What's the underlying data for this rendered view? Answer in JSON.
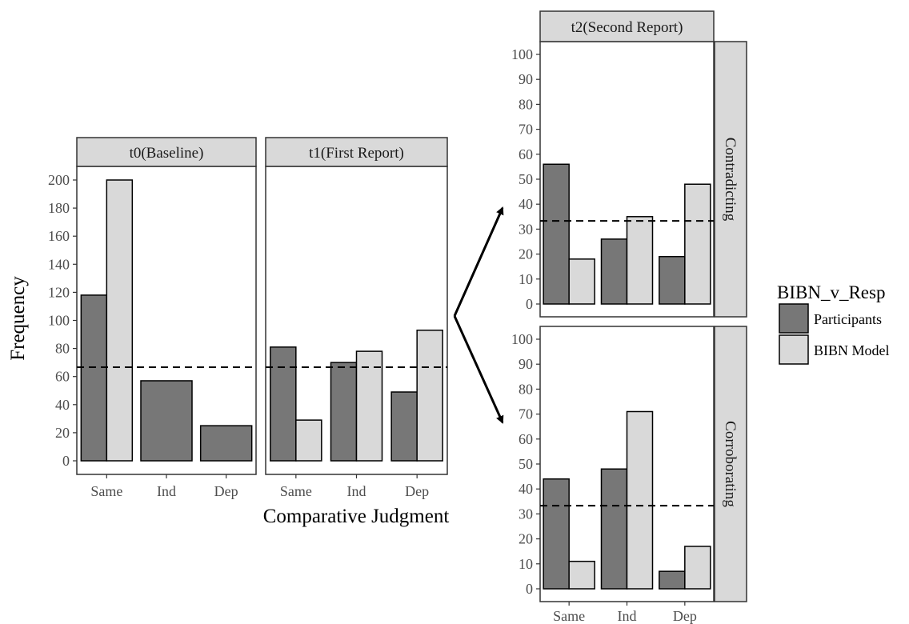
{
  "colors": {
    "participants": "#777777",
    "bibn": "#d9d9d9",
    "strip": "#d9d9d9",
    "axis_text": "#4d4d4d"
  },
  "xlabel": "Comparative Judgment",
  "ylabel": "Frequency",
  "legend": {
    "title": "BIBN_v_Resp",
    "items": [
      "Participants",
      "BIBN Model"
    ]
  },
  "chart_data": [
    {
      "type": "bar",
      "strip": "t0(Baseline)",
      "categories": [
        "Same",
        "Ind",
        "Dep"
      ],
      "series": [
        {
          "name": "Participants",
          "values": [
            118,
            57,
            25
          ]
        },
        {
          "name": "BIBN Model",
          "values": [
            200,
            null,
            null
          ]
        }
      ],
      "ylim": [
        0,
        210
      ],
      "yticks": [
        0,
        20,
        40,
        60,
        80,
        100,
        120,
        140,
        160,
        180,
        200
      ],
      "reference_line": 66.7
    },
    {
      "type": "bar",
      "strip": "t1(First Report)",
      "categories": [
        "Same",
        "Ind",
        "Dep"
      ],
      "series": [
        {
          "name": "Participants",
          "values": [
            81,
            70,
            49
          ]
        },
        {
          "name": "BIBN Model",
          "values": [
            29,
            78,
            93
          ]
        }
      ],
      "ylim": [
        0,
        210
      ],
      "reference_line": 66.7
    },
    {
      "type": "bar",
      "strip": "t2(Second Report)",
      "side_strip": "Contradicting",
      "categories": [
        "Same",
        "Ind",
        "Dep"
      ],
      "series": [
        {
          "name": "Participants",
          "values": [
            56,
            26,
            19
          ]
        },
        {
          "name": "BIBN Model",
          "values": [
            18,
            35,
            48
          ]
        }
      ],
      "ylim": [
        0,
        103
      ],
      "yticks": [
        0,
        10,
        20,
        30,
        40,
        50,
        60,
        70,
        80,
        90,
        100
      ],
      "reference_line": 33.3
    },
    {
      "type": "bar",
      "side_strip": "Corroborating",
      "categories": [
        "Same",
        "Ind",
        "Dep"
      ],
      "series": [
        {
          "name": "Participants",
          "values": [
            44,
            48,
            7
          ]
        },
        {
          "name": "BIBN Model",
          "values": [
            11,
            71,
            17
          ]
        }
      ],
      "ylim": [
        0,
        103
      ],
      "yticks": [
        0,
        10,
        20,
        30,
        40,
        50,
        60,
        70,
        80,
        90,
        100
      ],
      "reference_line": 33.3
    }
  ]
}
